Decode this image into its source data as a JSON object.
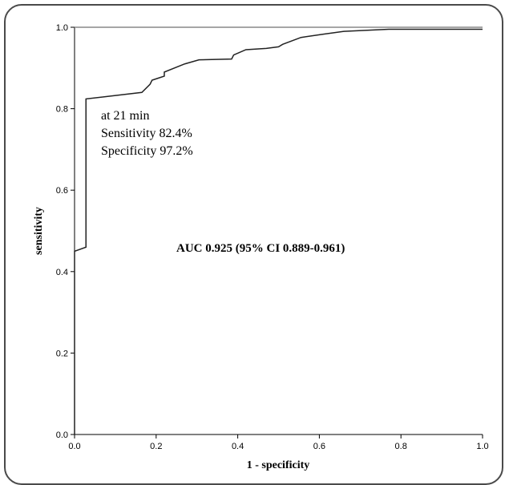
{
  "chart_data": {
    "type": "line",
    "title": "",
    "xlabel": "1 - specificity",
    "ylabel": "sensitivity",
    "xlim": [
      0,
      1
    ],
    "ylim": [
      0,
      1
    ],
    "x_ticks": [
      "0.0",
      "0.2",
      "0.4",
      "0.6",
      "0.8",
      "1.0"
    ],
    "y_ticks": [
      "0.0",
      "0.2",
      "0.4",
      "0.6",
      "0.8",
      "1.0"
    ],
    "grid": false,
    "series": [
      {
        "x": [
          0.0,
          0.0,
          0.028,
          0.028,
          0.165,
          0.185,
          0.19,
          0.205,
          0.22,
          0.22,
          0.27,
          0.305,
          0.385,
          0.39,
          0.42,
          0.47,
          0.5,
          0.51,
          0.555,
          0.61,
          0.66,
          0.77,
          1.0
        ],
        "y": [
          0.0,
          0.45,
          0.46,
          0.824,
          0.84,
          0.86,
          0.87,
          0.875,
          0.88,
          0.89,
          0.91,
          0.92,
          0.922,
          0.932,
          0.945,
          0.948,
          0.952,
          0.958,
          0.975,
          0.983,
          0.99,
          0.995,
          0.995
        ]
      }
    ],
    "reference_line": {
      "x": [
        0,
        1
      ],
      "y": [
        1,
        1
      ]
    },
    "annotations": {
      "cutoff_lines": [
        "at 21 min",
        "Sensitivity 82.4%",
        "Specificity 97.2%"
      ],
      "auc": "AUC 0.925 (95% CI 0.889-0.961)"
    }
  }
}
